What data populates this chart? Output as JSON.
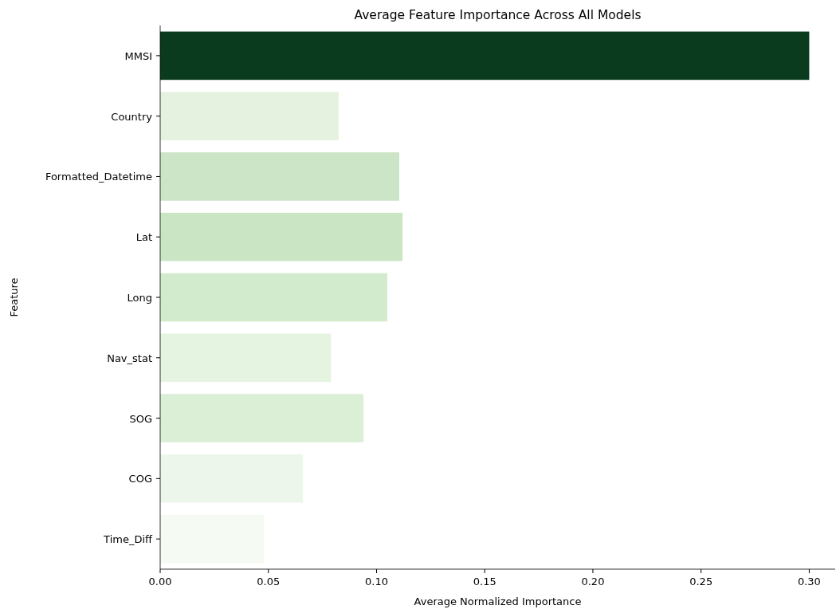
{
  "chart_data": {
    "type": "bar",
    "orientation": "horizontal",
    "title": "Average Feature Importance Across All Models",
    "xlabel": "Average Normalized Importance",
    "ylabel": "Feature",
    "categories": [
      "MMSI",
      "Country",
      "Formatted_Datetime",
      "Lat",
      "Long",
      "Nav_stat",
      "SOG",
      "COG",
      "Time_Diff"
    ],
    "values": [
      0.3,
      0.0825,
      0.1105,
      0.112,
      0.105,
      0.079,
      0.094,
      0.066,
      0.048
    ],
    "colors": [
      "#0a3b1e",
      "#e5f2e0",
      "#cce5c6",
      "#cae5c4",
      "#d2ebcc",
      "#e5f3e1",
      "#dbeed6",
      "#edf6ea",
      "#f5fbf3"
    ],
    "xlim": [
      0,
      0.312
    ],
    "xticks": [
      {
        "value": 0,
        "label": "0.00"
      },
      {
        "value": 0.05,
        "label": "0.05"
      },
      {
        "value": 0.1,
        "label": "0.10"
      },
      {
        "value": 0.15,
        "label": "0.15"
      },
      {
        "value": 0.2,
        "label": "0.20"
      },
      {
        "value": 0.25,
        "label": "0.25"
      },
      {
        "value": 0.3,
        "label": "0.30"
      }
    ]
  }
}
